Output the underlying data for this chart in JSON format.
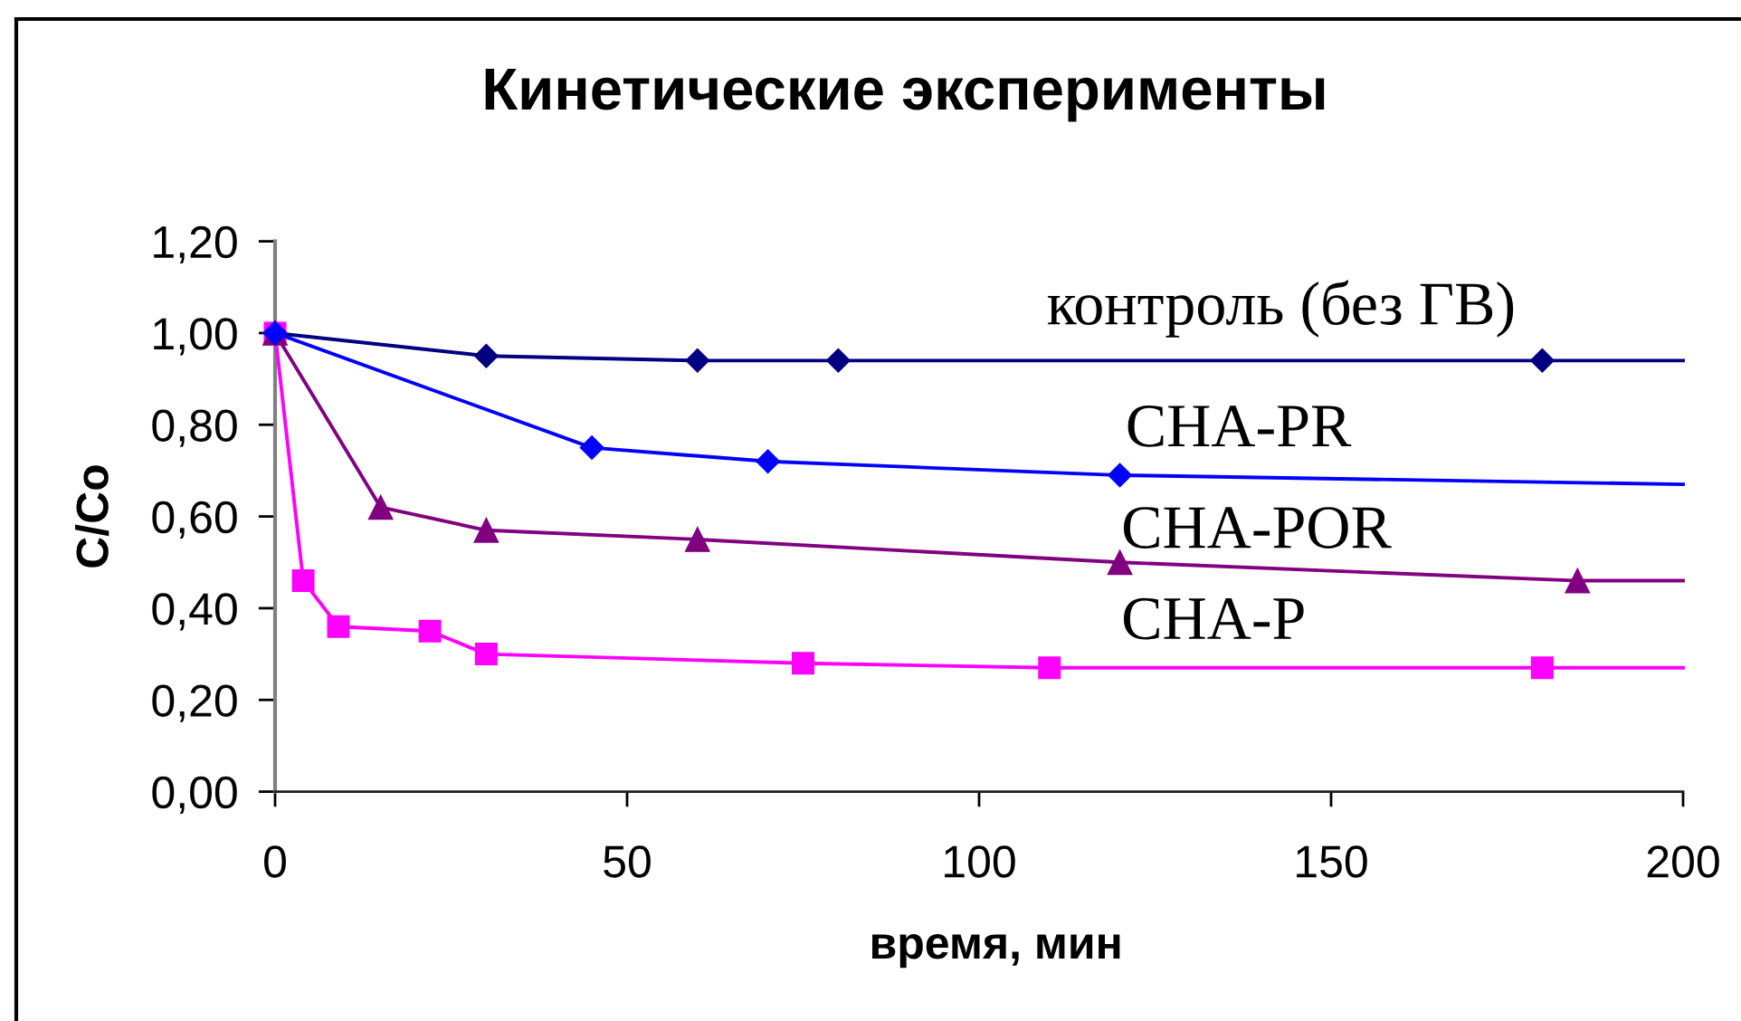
{
  "chart_data": {
    "type": "line",
    "title": "Кинетические эксперименты",
    "xlabel": "время, мин",
    "ylabel": "C/Co",
    "xlim": [
      0,
      200
    ],
    "ylim": [
      0,
      1.2
    ],
    "xticks": [
      0,
      50,
      100,
      150,
      200
    ],
    "yticks": [
      {
        "value": 0,
        "label": "0,00"
      },
      {
        "value": 0.2,
        "label": "0,20"
      },
      {
        "value": 0.4,
        "label": "0,40"
      },
      {
        "value": 0.6,
        "label": "0,60"
      },
      {
        "value": 0.8,
        "label": "0,80"
      },
      {
        "value": 1.0,
        "label": "1,00"
      },
      {
        "value": 1.2,
        "label": "1,20"
      }
    ],
    "grid": false,
    "legend": false,
    "line_style": "solid",
    "series": [
      {
        "name": "CHA-P",
        "color": "#ff00ff",
        "marker": "square",
        "x": [
          0,
          4,
          9,
          22,
          30,
          75,
          110,
          180
        ],
        "values": [
          1.0,
          0.46,
          0.36,
          0.35,
          0.3,
          0.28,
          0.27,
          0.27
        ]
      },
      {
        "color": "#ff00ff",
        "marker": "none",
        "x": [
          180,
          200
        ],
        "values": [
          0.27,
          0.27
        ]
      },
      {
        "name": "CHA-POR",
        "color": "#800080",
        "marker": "triangle",
        "x": [
          0,
          15,
          30,
          60,
          120,
          185
        ],
        "values": [
          1.0,
          0.62,
          0.57,
          0.55,
          0.5,
          0.46
        ]
      },
      {
        "color": "#800080",
        "marker": "none",
        "x": [
          185,
          200
        ],
        "values": [
          0.46,
          0.46
        ]
      },
      {
        "name": "контроль (без ГВ)",
        "color": "#000080",
        "marker": "diamond",
        "x": [
          0,
          30,
          60,
          80,
          180
        ],
        "values": [
          1.0,
          0.95,
          0.94,
          0.94,
          0.94
        ]
      },
      {
        "color": "#000080",
        "marker": "none",
        "x": [
          180,
          200
        ],
        "values": [
          0.94,
          0.94
        ]
      },
      {
        "name": "CHA-PR",
        "color": "#0000ff",
        "marker": "diamond",
        "x": [
          0,
          45,
          70,
          120
        ],
        "values": [
          1.0,
          0.75,
          0.72,
          0.69
        ]
      },
      {
        "color": "#0000ff",
        "marker": "none",
        "x": [
          120,
          200
        ],
        "values": [
          0.69,
          0.67
        ]
      }
    ]
  }
}
